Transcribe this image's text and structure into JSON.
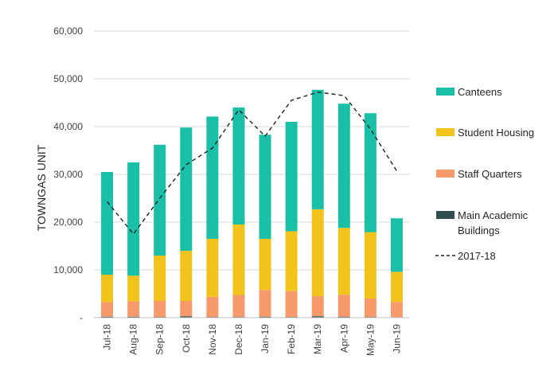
{
  "chart_data": {
    "type": "bar",
    "stacked": true,
    "categories": [
      "Jul-18",
      "Aug-18",
      "Sep-18",
      "Oct-18",
      "Nov-18",
      "Dec-18",
      "Jan-19",
      "Feb-19",
      "Mar-19",
      "Apr-19",
      "May-19",
      "Jun-19"
    ],
    "series": [
      {
        "name": "Main Academic Buildings",
        "label_lines": [
          "Main Academic",
          "Buildings"
        ],
        "color": "#2f4f4f",
        "values": [
          200,
          200,
          150,
          300,
          150,
          150,
          200,
          150,
          300,
          200,
          150,
          100
        ]
      },
      {
        "name": "Staff Quarters",
        "label_lines": [
          "Staff Quarters"
        ],
        "color": "#f79a6b",
        "values": [
          3100,
          3200,
          3350,
          3200,
          4200,
          4600,
          5600,
          5400,
          4200,
          4600,
          3850,
          3200
        ]
      },
      {
        "name": "Student Housing",
        "label_lines": [
          "Student Housing"
        ],
        "color": "#f2c31a",
        "values": [
          5700,
          5400,
          9500,
          10500,
          12150,
          14750,
          10700,
          12550,
          18200,
          14000,
          13900,
          6300
        ]
      },
      {
        "name": "Canteens",
        "label_lines": [
          "Canteens"
        ],
        "color": "#19bfa6",
        "values": [
          21500,
          23700,
          23200,
          25800,
          25600,
          24500,
          21800,
          22900,
          25000,
          26000,
          24900,
          11200
        ]
      }
    ],
    "line_series": {
      "name": "2017-18",
      "label_lines": [
        "2017-18"
      ],
      "color": "#222222",
      "dash": "5,4",
      "values": [
        24300,
        17500,
        25000,
        32000,
        35500,
        43500,
        38000,
        45500,
        47200,
        46500,
        39500,
        30700
      ]
    },
    "legend_order": [
      "Canteens",
      "Student Housing",
      "Staff Quarters",
      "Main Academic Buildings",
      "2017-18"
    ],
    "ylabel": "TOWNGAS UNIT",
    "ylim": [
      0,
      60000
    ],
    "yticks": [
      0,
      10000,
      20000,
      30000,
      40000,
      50000,
      60000
    ],
    "ytick_labels": [
      "-",
      "10,000",
      "20,000",
      "30,000",
      "40,000",
      "50,000",
      "60,000"
    ],
    "grid": true,
    "legend_position": "right"
  }
}
